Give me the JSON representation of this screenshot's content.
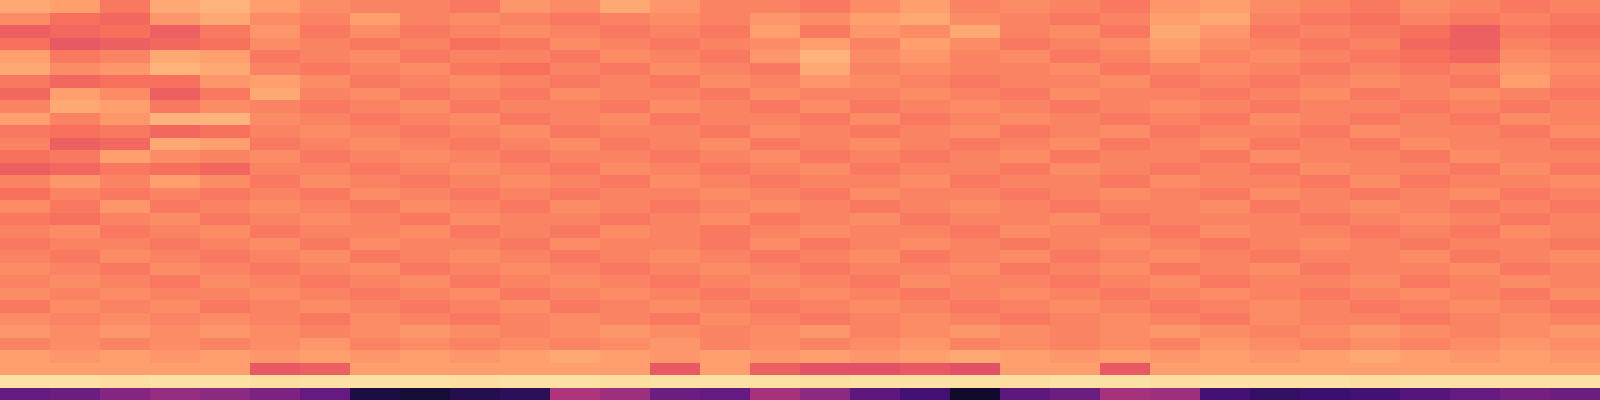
{
  "chart_data": {
    "type": "heatmap",
    "color": "magma",
    "tick_labels": false,
    "grid": false,
    "xlim": [
      -0.5,
      31.5
    ],
    "ylim": [
      31.5,
      -0.5
    ],
    "color_range": [
      0,
      1
    ],
    "cells": [
      [
        0.82,
        0.8,
        0.72,
        0.82,
        0.84,
        0.8,
        0.76,
        0.74,
        0.74,
        0.72,
        0.78,
        0.76,
        0.82,
        0.78,
        0.74,
        0.74,
        0.72,
        0.76,
        0.8,
        0.74,
        0.76,
        0.74,
        0.72,
        0.78,
        0.8,
        0.76,
        0.74,
        0.72,
        0.76,
        0.74,
        0.72,
        0.74
      ],
      [
        0.76,
        0.7,
        0.68,
        0.78,
        0.82,
        0.76,
        0.74,
        0.8,
        0.74,
        0.76,
        0.74,
        0.72,
        0.74,
        0.76,
        0.74,
        0.78,
        0.76,
        0.8,
        0.82,
        0.76,
        0.74,
        0.72,
        0.74,
        0.8,
        0.82,
        0.74,
        0.72,
        0.7,
        0.74,
        0.72,
        0.74,
        0.72
      ],
      [
        0.66,
        0.68,
        0.7,
        0.66,
        0.72,
        0.78,
        0.72,
        0.76,
        0.72,
        0.74,
        0.76,
        0.74,
        0.72,
        0.74,
        0.72,
        0.8,
        0.72,
        0.78,
        0.76,
        0.82,
        0.74,
        0.76,
        0.72,
        0.82,
        0.78,
        0.72,
        0.74,
        0.72,
        0.7,
        0.66,
        0.72,
        0.7
      ],
      [
        0.7,
        0.64,
        0.66,
        0.68,
        0.7,
        0.76,
        0.74,
        0.72,
        0.74,
        0.7,
        0.72,
        0.76,
        0.74,
        0.72,
        0.74,
        0.76,
        0.8,
        0.74,
        0.8,
        0.76,
        0.72,
        0.74,
        0.76,
        0.8,
        0.76,
        0.74,
        0.72,
        0.74,
        0.68,
        0.66,
        0.74,
        0.72
      ],
      [
        0.8,
        0.72,
        0.74,
        0.82,
        0.8,
        0.72,
        0.74,
        0.76,
        0.72,
        0.74,
        0.74,
        0.72,
        0.76,
        0.74,
        0.72,
        0.78,
        0.84,
        0.76,
        0.78,
        0.74,
        0.76,
        0.72,
        0.74,
        0.78,
        0.74,
        0.76,
        0.74,
        0.72,
        0.7,
        0.68,
        0.76,
        0.74
      ],
      [
        0.82,
        0.76,
        0.78,
        0.84,
        0.82,
        0.74,
        0.72,
        0.74,
        0.76,
        0.72,
        0.7,
        0.74,
        0.72,
        0.76,
        0.74,
        0.72,
        0.82,
        0.74,
        0.76,
        0.74,
        0.74,
        0.76,
        0.72,
        0.74,
        0.76,
        0.74,
        0.72,
        0.74,
        0.72,
        0.74,
        0.78,
        0.76
      ],
      [
        0.72,
        0.68,
        0.7,
        0.7,
        0.78,
        0.8,
        0.76,
        0.72,
        0.74,
        0.76,
        0.74,
        0.72,
        0.74,
        0.72,
        0.76,
        0.74,
        0.78,
        0.76,
        0.74,
        0.72,
        0.74,
        0.74,
        0.76,
        0.72,
        0.74,
        0.72,
        0.74,
        0.76,
        0.74,
        0.72,
        0.8,
        0.74
      ],
      [
        0.68,
        0.8,
        0.76,
        0.66,
        0.72,
        0.82,
        0.74,
        0.76,
        0.72,
        0.74,
        0.72,
        0.76,
        0.74,
        0.74,
        0.72,
        0.76,
        0.74,
        0.74,
        0.76,
        0.74,
        0.72,
        0.76,
        0.74,
        0.74,
        0.72,
        0.74,
        0.76,
        0.72,
        0.74,
        0.76,
        0.74,
        0.72
      ],
      [
        0.74,
        0.82,
        0.8,
        0.72,
        0.76,
        0.74,
        0.72,
        0.74,
        0.76,
        0.72,
        0.74,
        0.74,
        0.72,
        0.76,
        0.74,
        0.72,
        0.76,
        0.72,
        0.74,
        0.76,
        0.74,
        0.72,
        0.74,
        0.76,
        0.74,
        0.72,
        0.74,
        0.74,
        0.72,
        0.74,
        0.72,
        0.74
      ],
      [
        0.8,
        0.74,
        0.78,
        0.84,
        0.84,
        0.76,
        0.74,
        0.72,
        0.74,
        0.76,
        0.72,
        0.74,
        0.76,
        0.72,
        0.74,
        0.74,
        0.72,
        0.76,
        0.72,
        0.74,
        0.76,
        0.74,
        0.72,
        0.74,
        0.72,
        0.76,
        0.74,
        0.72,
        0.74,
        0.72,
        0.76,
        0.74
      ],
      [
        0.72,
        0.7,
        0.72,
        0.68,
        0.7,
        0.74,
        0.76,
        0.74,
        0.72,
        0.74,
        0.76,
        0.72,
        0.74,
        0.74,
        0.72,
        0.76,
        0.74,
        0.72,
        0.74,
        0.76,
        0.72,
        0.74,
        0.76,
        0.72,
        0.74,
        0.74,
        0.72,
        0.76,
        0.74,
        0.74,
        0.72,
        0.76
      ],
      [
        0.74,
        0.66,
        0.68,
        0.82,
        0.8,
        0.72,
        0.74,
        0.76,
        0.74,
        0.72,
        0.74,
        0.76,
        0.72,
        0.74,
        0.76,
        0.72,
        0.74,
        0.76,
        0.74,
        0.72,
        0.74,
        0.76,
        0.72,
        0.74,
        0.76,
        0.72,
        0.74,
        0.72,
        0.76,
        0.74,
        0.74,
        0.72
      ],
      [
        0.7,
        0.72,
        0.8,
        0.76,
        0.74,
        0.76,
        0.72,
        0.74,
        0.76,
        0.74,
        0.72,
        0.74,
        0.74,
        0.72,
        0.74,
        0.76,
        0.72,
        0.74,
        0.72,
        0.74,
        0.76,
        0.72,
        0.74,
        0.74,
        0.72,
        0.76,
        0.74,
        0.74,
        0.72,
        0.76,
        0.74,
        0.74
      ],
      [
        0.66,
        0.68,
        0.72,
        0.7,
        0.68,
        0.74,
        0.74,
        0.72,
        0.74,
        0.76,
        0.74,
        0.72,
        0.76,
        0.74,
        0.72,
        0.74,
        0.76,
        0.72,
        0.74,
        0.74,
        0.72,
        0.76,
        0.74,
        0.72,
        0.74,
        0.72,
        0.76,
        0.74,
        0.74,
        0.72,
        0.76,
        0.72
      ],
      [
        0.74,
        0.78,
        0.74,
        0.8,
        0.76,
        0.72,
        0.76,
        0.74,
        0.72,
        0.74,
        0.76,
        0.74,
        0.72,
        0.76,
        0.74,
        0.72,
        0.74,
        0.74,
        0.76,
        0.72,
        0.74,
        0.74,
        0.72,
        0.76,
        0.74,
        0.74,
        0.72,
        0.76,
        0.72,
        0.74,
        0.74,
        0.76
      ],
      [
        0.7,
        0.74,
        0.72,
        0.74,
        0.72,
        0.74,
        0.72,
        0.76,
        0.74,
        0.72,
        0.74,
        0.72,
        0.74,
        0.74,
        0.76,
        0.74,
        0.72,
        0.76,
        0.74,
        0.74,
        0.72,
        0.74,
        0.76,
        0.74,
        0.72,
        0.76,
        0.74,
        0.72,
        0.74,
        0.76,
        0.72,
        0.74
      ],
      [
        0.76,
        0.72,
        0.78,
        0.72,
        0.74,
        0.76,
        0.74,
        0.72,
        0.76,
        0.74,
        0.72,
        0.76,
        0.74,
        0.72,
        0.74,
        0.76,
        0.74,
        0.72,
        0.74,
        0.76,
        0.74,
        0.72,
        0.74,
        0.74,
        0.76,
        0.72,
        0.74,
        0.76,
        0.74,
        0.72,
        0.74,
        0.72
      ],
      [
        0.72,
        0.7,
        0.74,
        0.76,
        0.72,
        0.74,
        0.76,
        0.74,
        0.72,
        0.76,
        0.74,
        0.74,
        0.72,
        0.74,
        0.76,
        0.72,
        0.74,
        0.76,
        0.72,
        0.74,
        0.74,
        0.76,
        0.72,
        0.74,
        0.74,
        0.74,
        0.72,
        0.74,
        0.76,
        0.74,
        0.72,
        0.74
      ],
      [
        0.74,
        0.76,
        0.72,
        0.74,
        0.76,
        0.72,
        0.74,
        0.74,
        0.76,
        0.72,
        0.74,
        0.72,
        0.76,
        0.74,
        0.72,
        0.74,
        0.76,
        0.74,
        0.74,
        0.72,
        0.76,
        0.74,
        0.74,
        0.72,
        0.76,
        0.74,
        0.74,
        0.72,
        0.74,
        0.72,
        0.76,
        0.74
      ],
      [
        0.72,
        0.74,
        0.74,
        0.72,
        0.74,
        0.76,
        0.72,
        0.76,
        0.74,
        0.74,
        0.72,
        0.76,
        0.74,
        0.74,
        0.72,
        0.76,
        0.72,
        0.74,
        0.76,
        0.74,
        0.72,
        0.74,
        0.76,
        0.74,
        0.72,
        0.74,
        0.76,
        0.74,
        0.72,
        0.74,
        0.74,
        0.72
      ],
      [
        0.74,
        0.72,
        0.76,
        0.74,
        0.72,
        0.74,
        0.76,
        0.72,
        0.74,
        0.76,
        0.74,
        0.72,
        0.74,
        0.76,
        0.74,
        0.72,
        0.74,
        0.76,
        0.72,
        0.74,
        0.76,
        0.72,
        0.74,
        0.76,
        0.74,
        0.72,
        0.74,
        0.74,
        0.76,
        0.72,
        0.74,
        0.76
      ],
      [
        0.76,
        0.74,
        0.72,
        0.76,
        0.74,
        0.72,
        0.74,
        0.76,
        0.72,
        0.74,
        0.76,
        0.74,
        0.72,
        0.74,
        0.76,
        0.74,
        0.72,
        0.74,
        0.74,
        0.76,
        0.72,
        0.74,
        0.76,
        0.72,
        0.74,
        0.76,
        0.72,
        0.74,
        0.74,
        0.76,
        0.72,
        0.74
      ],
      [
        0.74,
        0.76,
        0.74,
        0.72,
        0.76,
        0.74,
        0.72,
        0.74,
        0.76,
        0.72,
        0.74,
        0.76,
        0.74,
        0.72,
        0.74,
        0.76,
        0.74,
        0.72,
        0.76,
        0.74,
        0.74,
        0.72,
        0.74,
        0.76,
        0.72,
        0.74,
        0.74,
        0.76,
        0.72,
        0.74,
        0.76,
        0.74
      ],
      [
        0.76,
        0.74,
        0.76,
        0.74,
        0.74,
        0.76,
        0.74,
        0.72,
        0.74,
        0.76,
        0.72,
        0.74,
        0.76,
        0.74,
        0.72,
        0.74,
        0.76,
        0.74,
        0.72,
        0.74,
        0.76,
        0.74,
        0.72,
        0.74,
        0.76,
        0.74,
        0.72,
        0.74,
        0.76,
        0.74,
        0.72,
        0.76
      ],
      [
        0.72,
        0.76,
        0.74,
        0.76,
        0.72,
        0.74,
        0.76,
        0.74,
        0.72,
        0.74,
        0.76,
        0.72,
        0.74,
        0.76,
        0.74,
        0.72,
        0.74,
        0.76,
        0.74,
        0.72,
        0.74,
        0.76,
        0.74,
        0.72,
        0.74,
        0.76,
        0.74,
        0.72,
        0.74,
        0.76,
        0.74,
        0.72
      ],
      [
        0.76,
        0.74,
        0.76,
        0.74,
        0.76,
        0.74,
        0.72,
        0.76,
        0.74,
        0.72,
        0.74,
        0.76,
        0.74,
        0.72,
        0.76,
        0.74,
        0.72,
        0.74,
        0.76,
        0.74,
        0.72,
        0.74,
        0.76,
        0.74,
        0.72,
        0.76,
        0.74,
        0.74,
        0.72,
        0.74,
        0.76,
        0.74
      ],
      [
        0.78,
        0.76,
        0.78,
        0.76,
        0.78,
        0.76,
        0.74,
        0.76,
        0.78,
        0.76,
        0.74,
        0.76,
        0.78,
        0.76,
        0.74,
        0.76,
        0.78,
        0.74,
        0.76,
        0.78,
        0.76,
        0.74,
        0.76,
        0.78,
        0.76,
        0.74,
        0.76,
        0.78,
        0.76,
        0.74,
        0.76,
        0.78
      ],
      [
        0.74,
        0.76,
        0.74,
        0.76,
        0.74,
        0.76,
        0.78,
        0.74,
        0.76,
        0.74,
        0.76,
        0.74,
        0.76,
        0.78,
        0.74,
        0.76,
        0.74,
        0.76,
        0.78,
        0.74,
        0.76,
        0.74,
        0.76,
        0.74,
        0.78,
        0.76,
        0.74,
        0.76,
        0.74,
        0.76,
        0.78,
        0.76
      ],
      [
        0.8,
        0.78,
        0.8,
        0.78,
        0.8,
        0.78,
        0.8,
        0.78,
        0.8,
        0.78,
        0.8,
        0.82,
        0.8,
        0.78,
        0.8,
        0.78,
        0.8,
        0.78,
        0.8,
        0.82,
        0.8,
        0.78,
        0.8,
        0.78,
        0.8,
        0.78,
        0.8,
        0.82,
        0.8,
        0.78,
        0.8,
        0.78
      ],
      [
        0.8,
        0.8,
        0.8,
        0.8,
        0.8,
        0.64,
        0.66,
        0.8,
        0.8,
        0.8,
        0.8,
        0.8,
        0.8,
        0.64,
        0.8,
        0.66,
        0.62,
        0.62,
        0.64,
        0.62,
        0.8,
        0.8,
        0.64,
        0.8,
        0.8,
        0.8,
        0.8,
        0.8,
        0.8,
        0.8,
        0.8,
        0.8
      ],
      [
        0.94,
        0.94,
        0.93,
        0.94,
        0.94,
        0.93,
        0.94,
        0.94,
        0.94,
        0.93,
        0.94,
        0.94,
        0.93,
        0.94,
        0.94,
        0.94,
        0.93,
        0.94,
        0.94,
        0.94,
        0.93,
        0.94,
        0.94,
        0.93,
        0.94,
        0.94,
        0.94,
        0.93,
        0.94,
        0.94,
        0.94,
        0.94
      ],
      [
        0.3,
        0.32,
        0.38,
        0.42,
        0.4,
        0.36,
        0.3,
        0.12,
        0.1,
        0.14,
        0.16,
        0.48,
        0.44,
        0.32,
        0.3,
        0.46,
        0.4,
        0.28,
        0.22,
        0.08,
        0.28,
        0.32,
        0.46,
        0.44,
        0.22,
        0.18,
        0.2,
        0.22,
        0.26,
        0.3,
        0.34,
        0.32
      ]
    ]
  }
}
